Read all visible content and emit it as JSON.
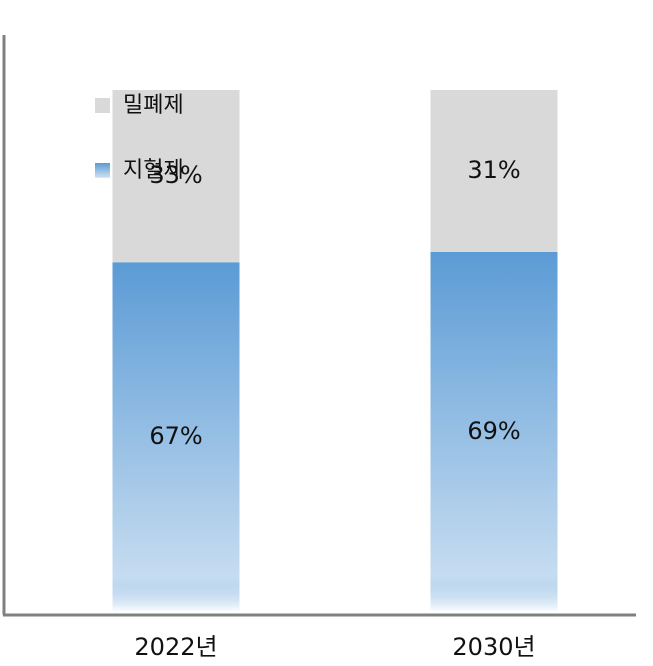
{
  "chart_data": {
    "type": "stacked-bar",
    "categories": [
      "2022년",
      "2030년"
    ],
    "series": [
      {
        "name": "지혈제",
        "color": "#5b9bd5",
        "values": [
          67,
          69
        ]
      },
      {
        "name": "밀폐제",
        "color": "#d9d9d9",
        "values": [
          33,
          31
        ]
      }
    ],
    "ylim": [
      0,
      100
    ]
  }
}
